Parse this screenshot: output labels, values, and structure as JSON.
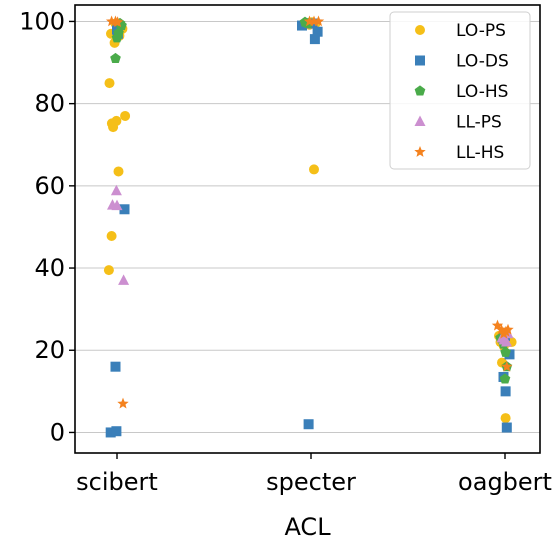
{
  "chart_data": {
    "type": "scatter",
    "title": "",
    "xlabel": "ACL",
    "ylabel": "",
    "categories": [
      "scibert",
      "specter",
      "oagbert"
    ],
    "ylim": [
      -5,
      104
    ],
    "yticks": [
      0,
      20,
      40,
      60,
      80,
      100
    ],
    "grid": "horizontal",
    "legend_position": "top-right",
    "series": [
      {
        "name": "LO-PS",
        "marker": "circle",
        "color": "#f5bf18",
        "points": [
          {
            "c": 0,
            "j": -0.27,
            "y": 39.5
          },
          {
            "c": 0,
            "j": -0.25,
            "y": 85
          },
          {
            "c": 0,
            "j": -0.18,
            "y": 47.8
          },
          {
            "c": 0,
            "j": -0.17,
            "y": 75.2
          },
          {
            "c": 0,
            "j": -0.2,
            "y": 97
          },
          {
            "c": 0,
            "j": -0.13,
            "y": 74.3
          },
          {
            "c": 0,
            "j": -0.08,
            "y": 94.8
          },
          {
            "c": 0,
            "j": -0.02,
            "y": 75.8
          },
          {
            "c": 0,
            "j": 0.05,
            "y": 63.5
          },
          {
            "c": 0,
            "j": 0.08,
            "y": 96.5
          },
          {
            "c": 0,
            "j": 0.18,
            "y": 98.2
          },
          {
            "c": 0,
            "j": 0.27,
            "y": 77
          },
          {
            "c": 0,
            "j": -0.05,
            "y": 99.5
          },
          {
            "c": 1,
            "j": -0.05,
            "y": 99.2
          },
          {
            "c": 1,
            "j": 0.03,
            "y": 99.8
          },
          {
            "c": 1,
            "j": 0.1,
            "y": 64
          },
          {
            "c": 1,
            "j": 0.15,
            "y": 99.5
          },
          {
            "c": 2,
            "j": -0.2,
            "y": 23.5
          },
          {
            "c": 2,
            "j": -0.15,
            "y": 22
          },
          {
            "c": 2,
            "j": -0.1,
            "y": 17
          },
          {
            "c": 2,
            "j": -0.04,
            "y": 21
          },
          {
            "c": 2,
            "j": 0.02,
            "y": 3.5
          },
          {
            "c": 2,
            "j": 0.08,
            "y": 23
          },
          {
            "c": 2,
            "j": 0.15,
            "y": 22
          },
          {
            "c": 2,
            "j": 0.22,
            "y": 22
          }
        ]
      },
      {
        "name": "LO-DS",
        "marker": "square",
        "color": "#3a7fb9",
        "points": [
          {
            "c": 0,
            "j": -0.21,
            "y": 0
          },
          {
            "c": 0,
            "j": -0.05,
            "y": 16
          },
          {
            "c": 0,
            "j": -0.02,
            "y": 0.3
          },
          {
            "c": 0,
            "j": 0.0,
            "y": 98
          },
          {
            "c": 0,
            "j": 0.03,
            "y": 97
          },
          {
            "c": 0,
            "j": 0.25,
            "y": 54.3
          },
          {
            "c": 1,
            "j": -0.3,
            "y": 99
          },
          {
            "c": 1,
            "j": -0.08,
            "y": 2
          },
          {
            "c": 1,
            "j": 0.05,
            "y": 99.5
          },
          {
            "c": 1,
            "j": 0.13,
            "y": 95.7
          },
          {
            "c": 1,
            "j": 0.22,
            "y": 97.5
          },
          {
            "c": 2,
            "j": -0.05,
            "y": 13.5
          },
          {
            "c": 2,
            "j": 0.02,
            "y": 10
          },
          {
            "c": 2,
            "j": 0.06,
            "y": 1.2
          },
          {
            "c": 2,
            "j": 0.15,
            "y": 19
          },
          {
            "c": 2,
            "j": 0.0,
            "y": 23.5
          }
        ]
      },
      {
        "name": "LO-HS",
        "marker": "pentagon",
        "color": "#4aab4a",
        "points": [
          {
            "c": 0,
            "j": -0.05,
            "y": 91
          },
          {
            "c": 0,
            "j": 0.0,
            "y": 96
          },
          {
            "c": 0,
            "j": 0.05,
            "y": 97.2
          },
          {
            "c": 0,
            "j": 0.1,
            "y": 99.5
          },
          {
            "c": 0,
            "j": 0.15,
            "y": 99
          },
          {
            "c": 1,
            "j": -0.2,
            "y": 99.8
          },
          {
            "c": 1,
            "j": -0.1,
            "y": 99.5
          },
          {
            "c": 2,
            "j": -0.15,
            "y": 23
          },
          {
            "c": 2,
            "j": -0.05,
            "y": 21.5
          },
          {
            "c": 2,
            "j": 0.0,
            "y": 13
          },
          {
            "c": 2,
            "j": 0.02,
            "y": 19.5
          },
          {
            "c": 2,
            "j": 0.06,
            "y": 16
          }
        ]
      },
      {
        "name": "LL-PS",
        "marker": "triangle",
        "color": "#cc8fd0",
        "points": [
          {
            "c": 0,
            "j": -0.15,
            "y": 55.3
          },
          {
            "c": 0,
            "j": -0.02,
            "y": 58.8
          },
          {
            "c": 0,
            "j": 0.0,
            "y": 55.2
          },
          {
            "c": 0,
            "j": 0.22,
            "y": 37
          },
          {
            "c": 2,
            "j": -0.1,
            "y": 23
          },
          {
            "c": 2,
            "j": -0.03,
            "y": 22.5
          },
          {
            "c": 2,
            "j": 0.05,
            "y": 22
          },
          {
            "c": 2,
            "j": 0.1,
            "y": 24
          }
        ]
      },
      {
        "name": "LL-HS",
        "marker": "star",
        "color": "#f4821e",
        "points": [
          {
            "c": 0,
            "j": -0.18,
            "y": 100
          },
          {
            "c": 0,
            "j": -0.05,
            "y": 100
          },
          {
            "c": 0,
            "j": 0.02,
            "y": 99.8
          },
          {
            "c": 0,
            "j": 0.2,
            "y": 7
          },
          {
            "c": 1,
            "j": -0.05,
            "y": 100
          },
          {
            "c": 1,
            "j": 0.1,
            "y": 100
          },
          {
            "c": 1,
            "j": 0.25,
            "y": 100
          },
          {
            "c": 2,
            "j": -0.25,
            "y": 26
          },
          {
            "c": 2,
            "j": -0.12,
            "y": 25
          },
          {
            "c": 2,
            "j": -0.04,
            "y": 24
          },
          {
            "c": 2,
            "j": 0.03,
            "y": 24.5
          },
          {
            "c": 2,
            "j": 0.06,
            "y": 16
          },
          {
            "c": 2,
            "j": 0.1,
            "y": 25
          }
        ]
      }
    ]
  }
}
